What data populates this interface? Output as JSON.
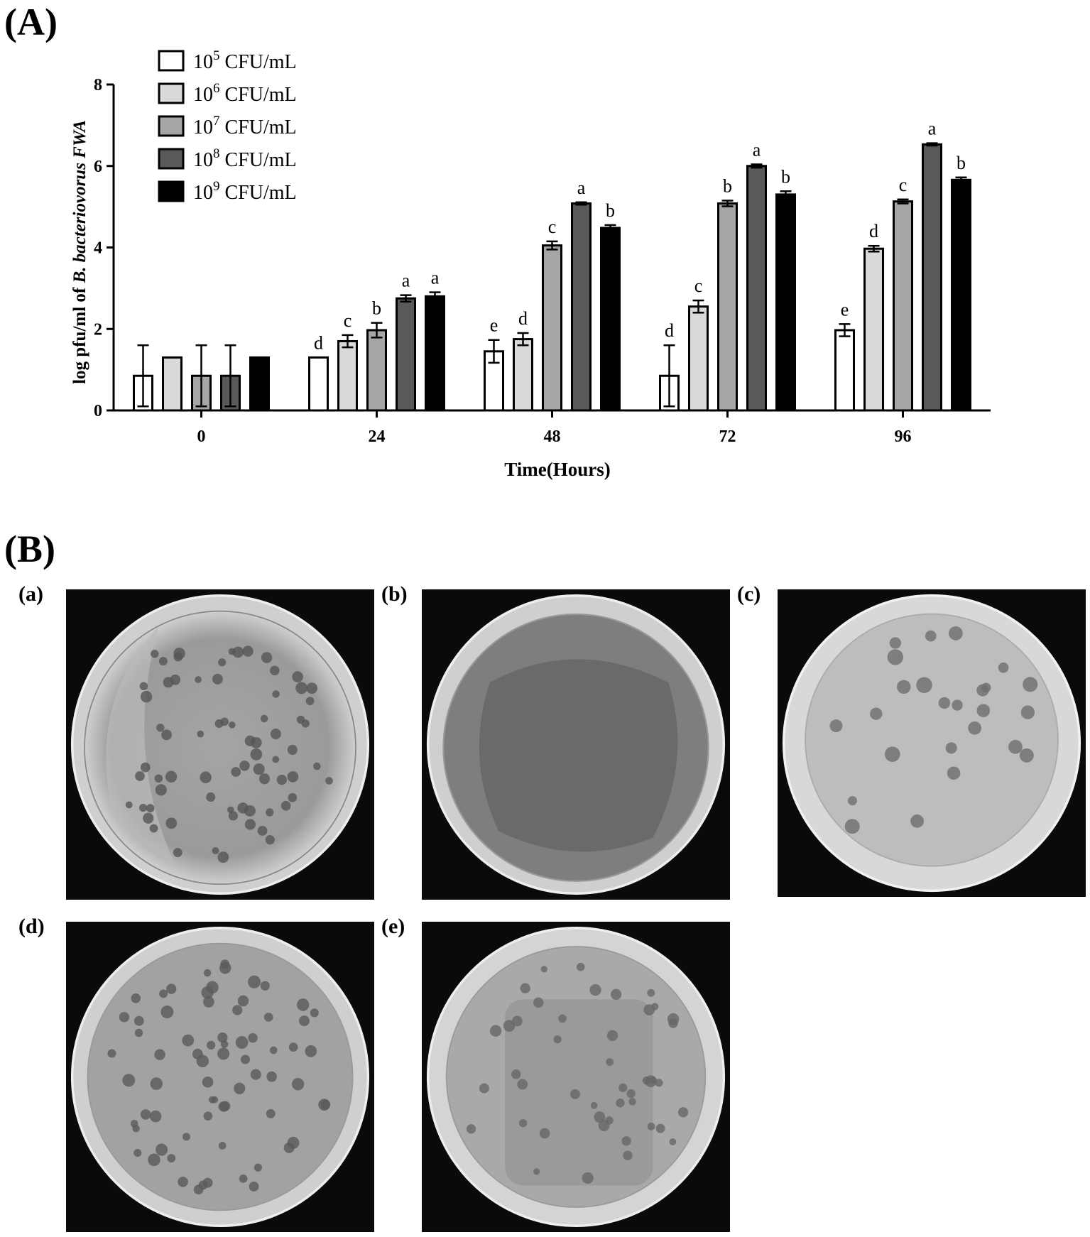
{
  "panel_a_label": "(A)",
  "panel_b_label": "(B)",
  "chart_data": {
    "type": "bar",
    "title": "",
    "xlabel": "Time(Hours)",
    "ylabel_plain": "log pfu/ml of ",
    "ylabel_italic": "B. bacteriovorus FWA",
    "categories": [
      "0",
      "24",
      "48",
      "72",
      "96"
    ],
    "ylim": [
      0,
      8
    ],
    "yticks": [
      "0",
      "2",
      "4",
      "6",
      "8"
    ],
    "grid": false,
    "legend_position": "top-left",
    "series": [
      {
        "name_base": "10",
        "name_exp": "5",
        "name_unit": " CFU/mL",
        "color": "#ffffff",
        "values": [
          0.85,
          1.3,
          1.45,
          0.85,
          1.97
        ],
        "errors": [
          0.75,
          0,
          0.28,
          0.75,
          0.15
        ],
        "letters": [
          "",
          "d",
          "e",
          "d",
          "e"
        ]
      },
      {
        "name_base": "10",
        "name_exp": "6",
        "name_unit": " CFU/mL",
        "color": "#d9d9d9",
        "values": [
          1.3,
          1.7,
          1.75,
          2.55,
          3.97
        ],
        "errors": [
          0,
          0.15,
          0.15,
          0.15,
          0.07
        ],
        "letters": [
          "",
          "c",
          "d",
          "c",
          "d"
        ]
      },
      {
        "name_base": "10",
        "name_exp": "7",
        "name_unit": " CFU/mL",
        "color": "#a6a6a6",
        "values": [
          0.85,
          1.97,
          4.05,
          5.08,
          5.13
        ],
        "errors": [
          0.75,
          0.18,
          0.1,
          0.07,
          0.05
        ],
        "letters": [
          "",
          "b",
          "c",
          "b",
          "c"
        ]
      },
      {
        "name_base": "10",
        "name_exp": "8",
        "name_unit": " CFU/mL",
        "color": "#595959",
        "values": [
          0.85,
          2.75,
          5.08,
          6.0,
          6.53
        ],
        "errors": [
          0.75,
          0.08,
          0.03,
          0.04,
          0.03
        ],
        "letters": [
          "",
          "a",
          "a",
          "a",
          "a"
        ]
      },
      {
        "name_base": "10",
        "name_exp": "9",
        "name_unit": " CFU/mL",
        "color": "#000000",
        "values": [
          1.3,
          2.8,
          4.48,
          5.3,
          5.66
        ],
        "errors": [
          0,
          0.1,
          0.07,
          0.08,
          0.06
        ],
        "letters": [
          "",
          "a",
          "b",
          "b",
          "b"
        ]
      }
    ]
  },
  "photos": [
    {
      "label": "(a)"
    },
    {
      "label": "(b)"
    },
    {
      "label": "(c)"
    },
    {
      "label": "(d)"
    },
    {
      "label": "(e)"
    }
  ]
}
